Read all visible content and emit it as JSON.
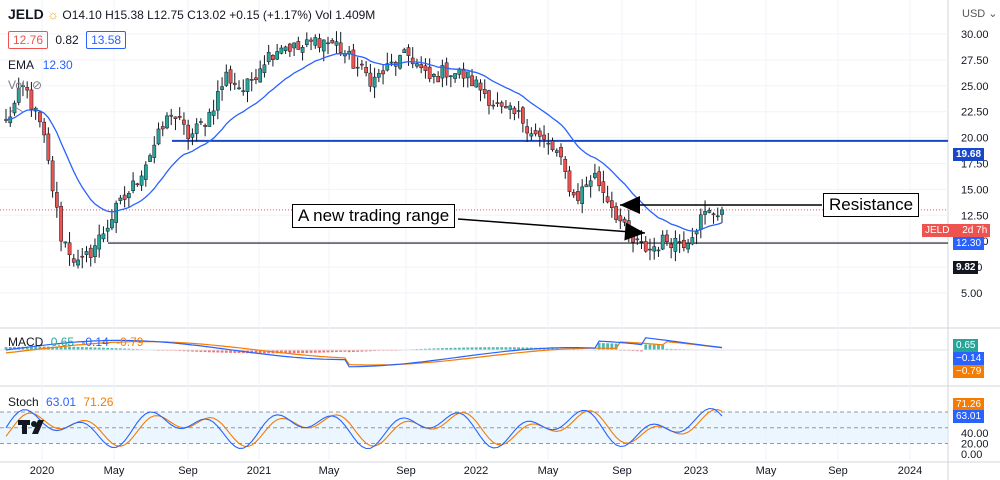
{
  "header": {
    "ticker": "JELD",
    "ohlc": "O14.10 H15.38 L12.75 C13.02 +0.15 (+1.17%) Vol 1.409M",
    "bid": "12.76",
    "spread": "0.82",
    "ask": "13.58",
    "ema_label": "EMA",
    "ema_value": "12.30",
    "vol_label": "Vol",
    "currency": "USD"
  },
  "annotations": {
    "range_label": "A new trading range",
    "resistance_label": "Resistance"
  },
  "price_tags": {
    "resistance": "19.68",
    "ticker_tag": "JELD",
    "time_left": "2d 7h",
    "ema": "12.30",
    "support": "9.82"
  },
  "macd": {
    "label": "MACD",
    "values": [
      "0.65",
      "-0.14",
      "-0.79"
    ],
    "tags": [
      "0.65",
      "−0.14",
      "−0.79"
    ]
  },
  "stoch": {
    "label": "Stoch",
    "values": [
      "63.01",
      "71.26"
    ],
    "tags": [
      "71.26",
      "63.01"
    ]
  },
  "colors": {
    "up": "#26a69a",
    "down": "#ef5350",
    "ema": "#2962ff",
    "resistance_line": "#1848c9",
    "signal": "#f57c00"
  },
  "chart_data": {
    "type": "candlestick",
    "symbol": "JELD",
    "y_ticks": [
      "5.00",
      "7.50",
      "10.00",
      "12.50",
      "15.00",
      "17.50",
      "20.00",
      "22.50",
      "25.00",
      "27.50",
      "30.00"
    ],
    "macd_ticks": [],
    "stoch_ticks": [
      "0.00",
      "20.00",
      "40.00"
    ],
    "x_ticks": [
      "2020",
      "May",
      "Sep",
      "2021",
      "May",
      "Sep",
      "2022",
      "May",
      "Sep",
      "2023",
      "May",
      "Sep",
      "2024"
    ],
    "horizontal_lines": [
      {
        "value": 19.68
      },
      {
        "value": 9.82
      }
    ],
    "close_series": [
      {
        "date": "2019-12",
        "close": 21.5
      },
      {
        "date": "2020-01",
        "close": 25.0
      },
      {
        "date": "2020-02",
        "close": 20.5
      },
      {
        "date": "2020-03",
        "close": 10.5
      },
      {
        "date": "2020-03b",
        "close": 7.5
      },
      {
        "date": "2020-04",
        "close": 10.0
      },
      {
        "date": "2020-05",
        "close": 13.0
      },
      {
        "date": "2020-06",
        "close": 15.5
      },
      {
        "date": "2020-07",
        "close": 19.0
      },
      {
        "date": "2020-08",
        "close": 22.5
      },
      {
        "date": "2020-09",
        "close": 20.0
      },
      {
        "date": "2020-10",
        "close": 22.0
      },
      {
        "date": "2020-11",
        "close": 26.0
      },
      {
        "date": "2020-12",
        "close": 24.5
      },
      {
        "date": "2021-01",
        "close": 27.5
      },
      {
        "date": "2021-02",
        "close": 29.0
      },
      {
        "date": "2021-03",
        "close": 28.5
      },
      {
        "date": "2021-04",
        "close": 29.5
      },
      {
        "date": "2021-05",
        "close": 29.0
      },
      {
        "date": "2021-06",
        "close": 27.0
      },
      {
        "date": "2021-07",
        "close": 25.5
      },
      {
        "date": "2021-08",
        "close": 27.0
      },
      {
        "date": "2021-09",
        "close": 28.0
      },
      {
        "date": "2021-10",
        "close": 25.5
      },
      {
        "date": "2021-11",
        "close": 26.5
      },
      {
        "date": "2021-12",
        "close": 26.0
      },
      {
        "date": "2022-01",
        "close": 24.5
      },
      {
        "date": "2022-02",
        "close": 22.5
      },
      {
        "date": "2022-03",
        "close": 22.0
      },
      {
        "date": "2022-04",
        "close": 20.0
      },
      {
        "date": "2022-05",
        "close": 18.5
      },
      {
        "date": "2022-06",
        "close": 14.0
      },
      {
        "date": "2022-07",
        "close": 16.5
      },
      {
        "date": "2022-08",
        "close": 13.5
      },
      {
        "date": "2022-09",
        "close": 10.0
      },
      {
        "date": "2022-10",
        "close": 9.2
      },
      {
        "date": "2022-11",
        "close": 10.2
      },
      {
        "date": "2022-12",
        "close": 10.0
      },
      {
        "date": "2023-01",
        "close": 12.5
      },
      {
        "date": "2023-02",
        "close": 13.02
      }
    ]
  }
}
